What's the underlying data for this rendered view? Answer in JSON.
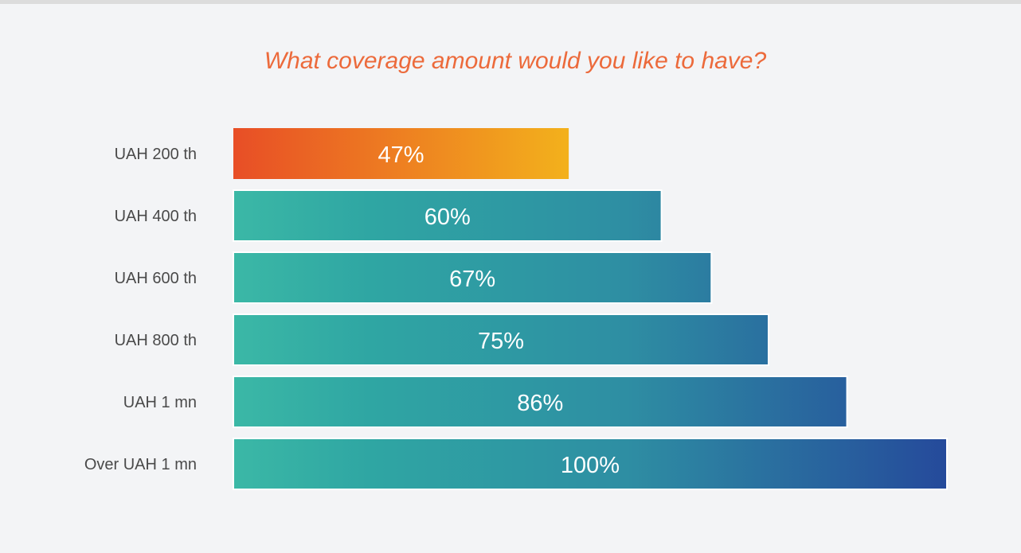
{
  "chart_data": {
    "type": "bar",
    "orientation": "horizontal",
    "title": "What coverage amount would you like to have?",
    "categories": [
      "UAH 200 th",
      "UAH 400 th",
      "UAH 600 th",
      "UAH 800 th",
      "UAH 1 mn",
      "Over UAH 1 mn"
    ],
    "values": [
      47,
      60,
      67,
      75,
      86,
      100
    ],
    "value_labels": [
      "47%",
      "60%",
      "67%",
      "75%",
      "86%",
      "100%"
    ],
    "xlim": [
      0,
      100
    ],
    "grid": false,
    "legend": "none",
    "highlight_index": 0,
    "colors": {
      "highlight_start": "#e84e26",
      "highlight_end": "#f3b11c",
      "bar_start": "#3bb8a6",
      "bar_mid": "#2fa6a3",
      "bar_end": "#254a9b",
      "title": "#ec6a3b"
    }
  }
}
